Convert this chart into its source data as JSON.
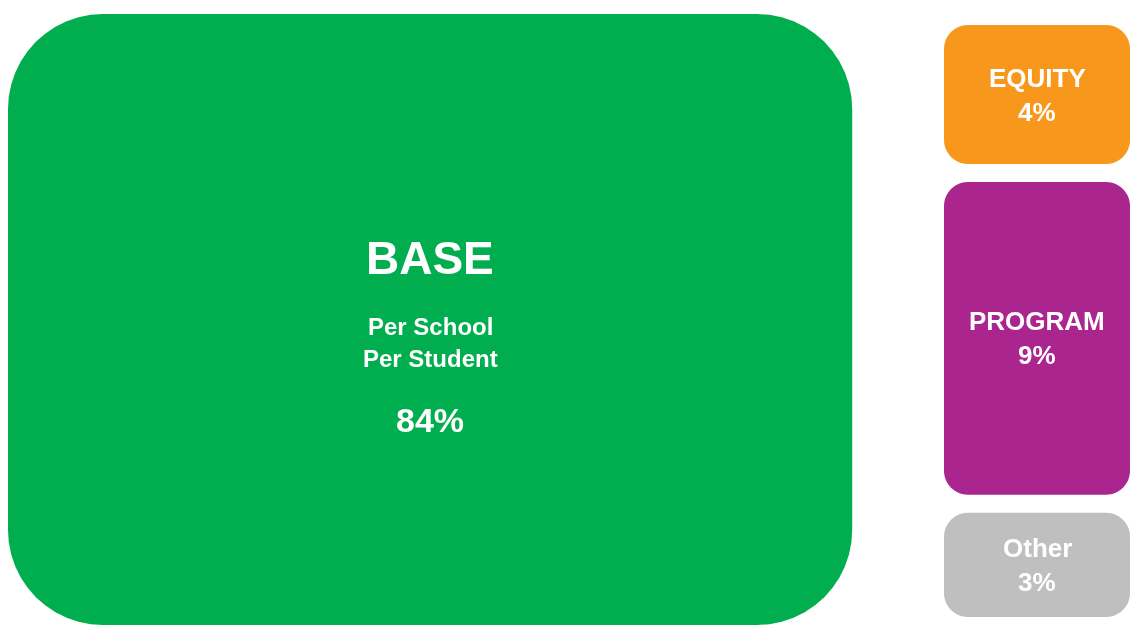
{
  "chart_data": {
    "type": "other",
    "categories": [
      "BASE",
      "EQUITY",
      "PROGRAM",
      "Other"
    ],
    "values": [
      84,
      4,
      9,
      3
    ],
    "value_labels": [
      "84%",
      "4%",
      "9%",
      "3%"
    ],
    "colors": [
      "#00ae4f",
      "#f7981d",
      "#ab258e",
      "#bfbfbf"
    ],
    "annotations": [
      "Per School",
      "Per Student"
    ]
  }
}
